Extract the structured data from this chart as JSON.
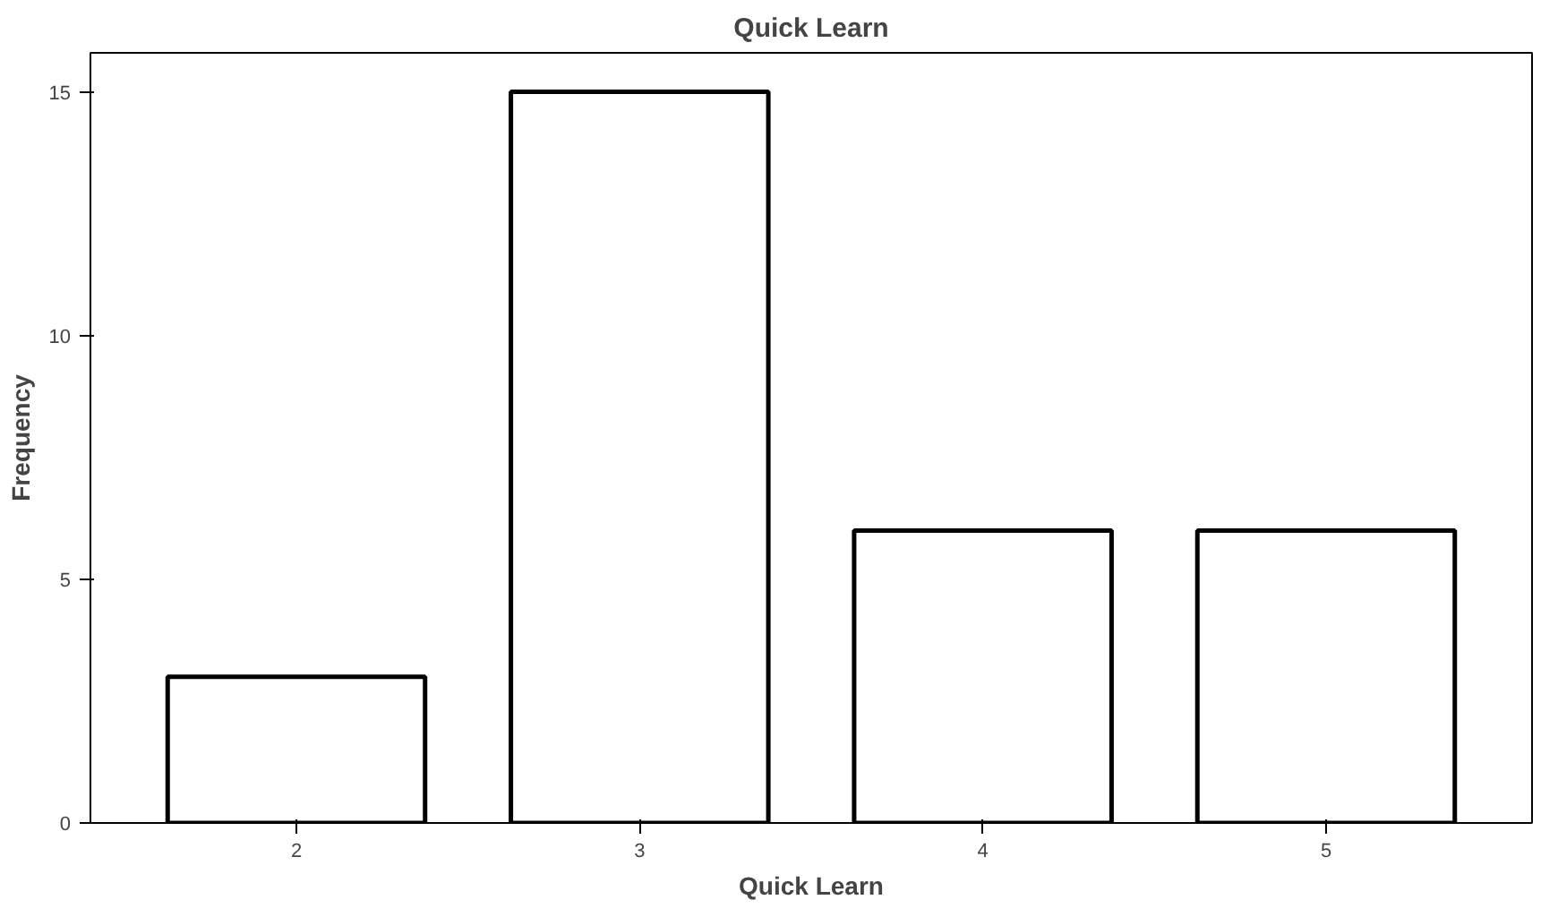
{
  "chart_data": {
    "type": "bar",
    "title": "Quick Learn",
    "xlabel": "Quick Learn",
    "ylabel": "Frequency",
    "categories": [
      "2",
      "3",
      "4",
      "5"
    ],
    "values": [
      3,
      15,
      6,
      6
    ],
    "color": "#ffffff",
    "ylim": [
      0,
      15.8
    ],
    "yticks": [
      0,
      5,
      10,
      15
    ],
    "grid": false
  }
}
